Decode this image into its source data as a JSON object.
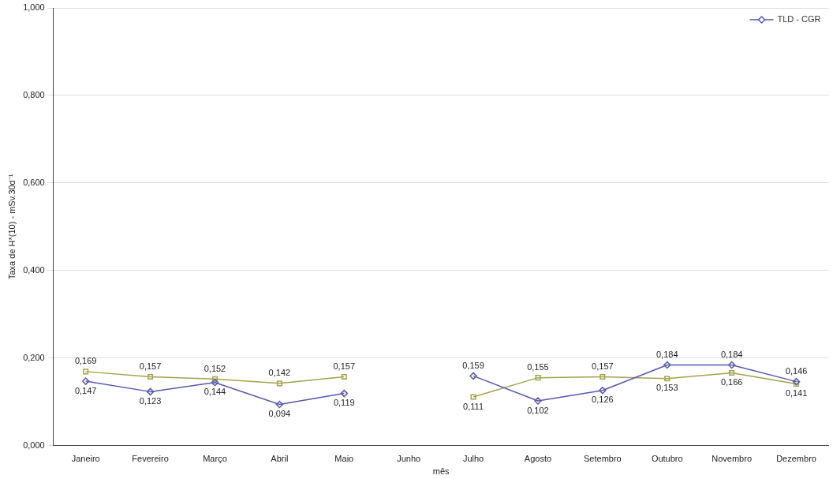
{
  "chart_data": {
    "type": "line",
    "xlabel": "mês",
    "ylabel": "Taxa de H*(10) - mSv.30d⁻¹",
    "categories": [
      "Janeiro",
      "Fevereiro",
      "Março",
      "Abril",
      "Maio",
      "Junho",
      "Julho",
      "Agosto",
      "Setembro",
      "Outubro",
      "Novembro",
      "Dezembro"
    ],
    "series": [
      {
        "name": "TLD - CGR",
        "color": "#5558b0",
        "marker": "diamond",
        "values": [
          0.147,
          0.123,
          0.144,
          0.094,
          0.119,
          null,
          0.159,
          0.102,
          0.126,
          0.184,
          0.184,
          0.146
        ],
        "value_labels": [
          "0,147",
          "0,123",
          "0,144",
          "0,094",
          "0,119",
          null,
          "0,159",
          "0,102",
          "0,126",
          "0,184",
          "0,184",
          "0,146"
        ]
      },
      {
        "color": "#a3a24c",
        "marker": "square",
        "values": [
          0.169,
          0.157,
          0.152,
          0.142,
          0.157,
          null,
          0.111,
          0.155,
          0.157,
          0.153,
          0.166,
          0.141
        ],
        "value_labels": [
          "0,169",
          "0,157",
          "0,152",
          "0,142",
          "0,157",
          null,
          "0,111",
          "0,155",
          "0,157",
          "0,153",
          "0,166",
          "0,141"
        ]
      }
    ],
    "ylim": [
      0,
      1
    ],
    "yticks": [
      {
        "value": 0,
        "label": "0,000"
      },
      {
        "value": 0.2,
        "label": "0,200"
      },
      {
        "value": 0.4,
        "label": "0,400"
      },
      {
        "value": 0.6,
        "label": "0,600"
      },
      {
        "value": 0.8,
        "label": "0,800"
      },
      {
        "value": 1,
        "label": "1,000"
      }
    ],
    "grid": "y",
    "legend": "top right",
    "line_style": "solid"
  }
}
